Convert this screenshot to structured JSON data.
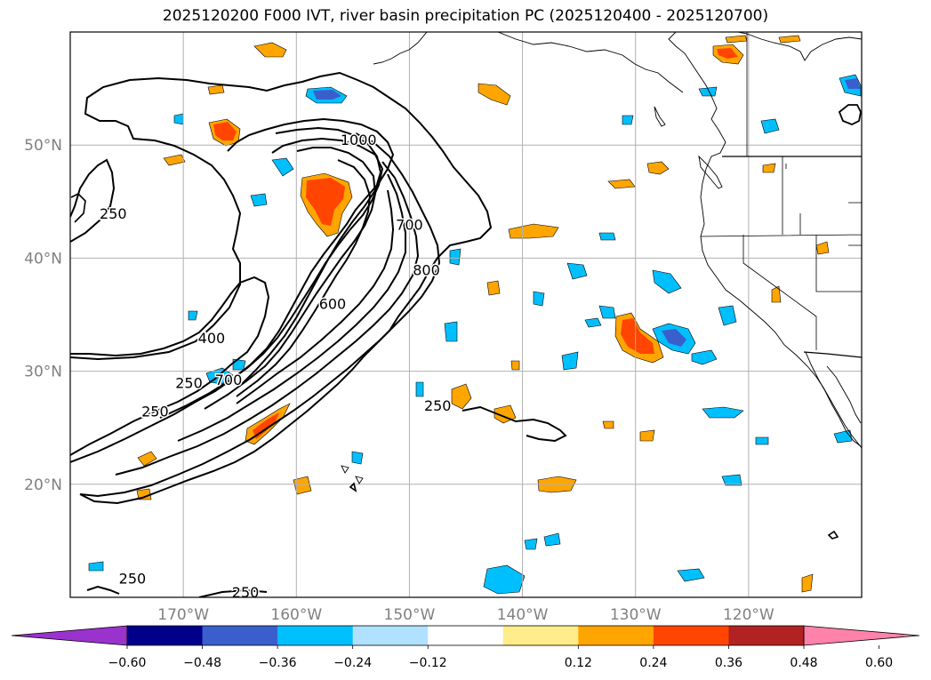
{
  "title": "2025120200 F000 IVT, river basin precipitation PC (2025120400 - 2025120700)",
  "map": {
    "lon_range": [
      -180,
      -110
    ],
    "lat_range": [
      10,
      60
    ],
    "lon_ticks": [
      {
        "lon": -170,
        "label": "170°W"
      },
      {
        "lon": -160,
        "label": "160°W"
      },
      {
        "lon": -150,
        "label": "150°W"
      },
      {
        "lon": -140,
        "label": "140°W"
      },
      {
        "lon": -130,
        "label": "130°W"
      },
      {
        "lon": -120,
        "label": "120°W"
      }
    ],
    "lat_ticks": [
      {
        "lat": 20,
        "label": "20°N"
      },
      {
        "lat": 30,
        "label": "30°N"
      },
      {
        "lat": 40,
        "label": "40°N"
      },
      {
        "lat": 50,
        "label": "50°N"
      }
    ],
    "gridlines": true,
    "ivt_contour_labels": [
      {
        "text": "250",
        "lon": -176.2,
        "lat": 43.5
      },
      {
        "text": "250",
        "lon": -174.5,
        "lat": 11.2
      },
      {
        "text": "250",
        "lon": -164.5,
        "lat": 10.0
      },
      {
        "text": "250",
        "lon": -169.5,
        "lat": 28.5
      },
      {
        "text": "250",
        "lon": -172.5,
        "lat": 26.0
      },
      {
        "text": "250",
        "lon": -147.5,
        "lat": 26.5
      },
      {
        "text": "400",
        "lon": -167.5,
        "lat": 32.5
      },
      {
        "text": "700",
        "lon": -166.0,
        "lat": 28.8
      },
      {
        "text": "600",
        "lon": -156.8,
        "lat": 35.5
      },
      {
        "text": "800",
        "lon": -148.5,
        "lat": 38.5
      },
      {
        "text": "700",
        "lon": -150.0,
        "lat": 42.5
      },
      {
        "text": "1000",
        "lon": -154.5,
        "lat": 50.0
      }
    ]
  },
  "colorbar": {
    "tick_labels": [
      "−0.60",
      "−0.48",
      "−0.36",
      "−0.24",
      "−0.12",
      "0.12",
      "0.24",
      "0.36",
      "0.48",
      "0.60"
    ],
    "colors": [
      "#9a32cd",
      "#00008b",
      "#3a5fcd",
      "#00bfff",
      "#b0e2ff",
      "#ffffff",
      "#ffec8b",
      "#ffa500",
      "#ff4500",
      "#b22222",
      "#ff82ab"
    ]
  },
  "precip_colors": {
    "pos1": "#ffa500",
    "pos2": "#ff4500",
    "neg1": "#00bfff",
    "neg2": "#3a5fcd"
  }
}
